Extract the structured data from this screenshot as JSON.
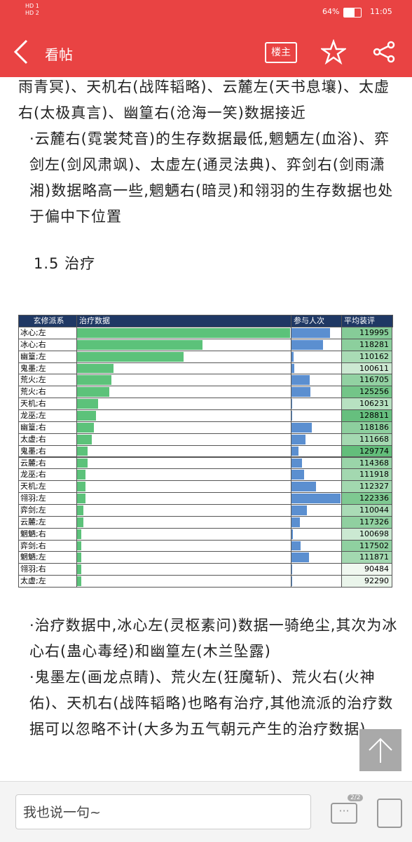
{
  "status_bar": {
    "network": [
      "HD 1",
      "HD 2"
    ],
    "battery": "64%",
    "time": "11:05"
  },
  "header": {
    "title": "看帖",
    "badge": "楼主"
  },
  "article": {
    "paragraphs_top": [
      "雨青冥)、天机右(战阵韬略)、云麓左(天书息壤)、太虚右(太极真言)、幽篁右(沧海一笑)数据接近",
      "·云麓右(霓裳梵音)的生存数据最低,魍魉左(血浴)、弈剑左(剑风肃飒)、太虚左(通灵法典)、弈剑右(剑雨潇湘)数据略高一些,魍魉右(暗灵)和翎羽的生存数据也处于偏中下位置"
    ],
    "heading": "1.5 治疗",
    "paragraphs_bottom": [
      "·治疗数据中,冰心左(灵枢素问)数据一骑绝尘,其次为冰心右(蛊心毒经)和幽篁左(木兰坠露)",
      "·鬼墨左(画龙点睛)、荒火左(狂魔斩)、荒火右(火神佑)、天机右(战阵韬略)也略有治疗,其他流派的治疗数据可以忽略不计(大多为五气朝元产生的治疗数据)"
    ]
  },
  "table": {
    "columns": [
      "玄修派系",
      "治疗数据",
      "参与人次",
      "平均装评"
    ],
    "names": [
      "冰心;左",
      "冰心;右",
      "幽篁;左",
      "鬼墨;左",
      "荒火;左",
      "荒火;右",
      "天机;右",
      "龙巫;左",
      "幽篁;右",
      "太虚;右",
      "鬼墨;右",
      "云麓;右",
      "龙巫;右",
      "天机;左",
      "翎羽;左",
      "弈剑;左",
      "云麓;左",
      "魍魉;右",
      "弈剑;右",
      "魍魉;左",
      "翎羽;右",
      "太虚;左"
    ],
    "healing": [
      100,
      59,
      50,
      17,
      16,
      15,
      10,
      9,
      8,
      7,
      5,
      5,
      4,
      4,
      4,
      3,
      3,
      2,
      2,
      2,
      2,
      2
    ],
    "participants": [
      55,
      45,
      3,
      4,
      26,
      27,
      1,
      1,
      29,
      20,
      10,
      15,
      18,
      35,
      70,
      22,
      12,
      2,
      13,
      25,
      1,
      1
    ],
    "scores": [
      119995,
      118281,
      110162,
      100611,
      116705,
      125256,
      106231,
      128811,
      118186,
      111668,
      129774,
      114368,
      111918,
      112327,
      122336,
      110044,
      117326,
      100698,
      117502,
      111871,
      90484,
      92290
    ]
  },
  "footer": {
    "placeholder": "我也说一句~",
    "page": "2/2"
  }
}
